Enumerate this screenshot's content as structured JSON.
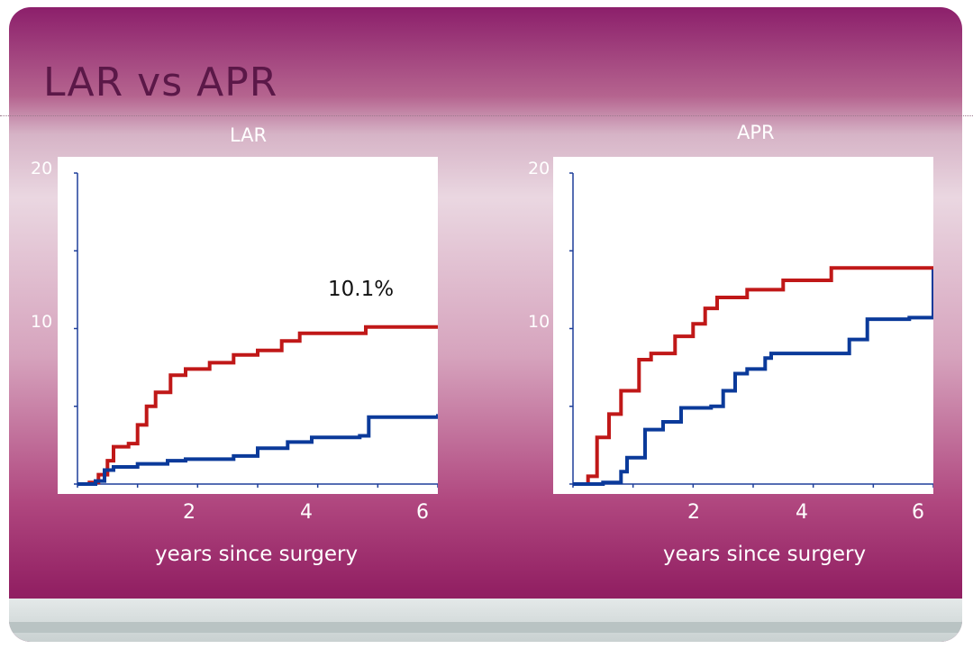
{
  "slide": {
    "title": "LAR vs APR"
  },
  "chart_data": [
    {
      "type": "line",
      "title": "LAR",
      "xlabel": "years since surgery",
      "x_ticks": [
        "2",
        "4",
        "6"
      ],
      "y_ticks": [
        "20",
        "10"
      ],
      "xlim": [
        0,
        6
      ],
      "ylim": [
        0,
        20
      ],
      "annotation": "10.1%",
      "series": [
        {
          "color": "#c01818",
          "points": [
            [
              0,
              0
            ],
            [
              0.2,
              0.1
            ],
            [
              0.35,
              0.6
            ],
            [
              0.5,
              1.5
            ],
            [
              0.6,
              2.4
            ],
            [
              0.85,
              2.6
            ],
            [
              1.0,
              3.8
            ],
            [
              1.15,
              5.0
            ],
            [
              1.3,
              5.9
            ],
            [
              1.55,
              7.0
            ],
            [
              1.8,
              7.4
            ],
            [
              2.2,
              7.8
            ],
            [
              2.6,
              8.3
            ],
            [
              3.0,
              8.6
            ],
            [
              3.4,
              9.2
            ],
            [
              3.7,
              9.7
            ],
            [
              4.3,
              9.7
            ],
            [
              4.8,
              10.1
            ],
            [
              6.0,
              10.1
            ]
          ]
        },
        {
          "color": "#0b3a9a",
          "points": [
            [
              0,
              0
            ],
            [
              0.3,
              0.2
            ],
            [
              0.45,
              0.9
            ],
            [
              0.6,
              1.1
            ],
            [
              1.0,
              1.3
            ],
            [
              1.5,
              1.5
            ],
            [
              1.8,
              1.6
            ],
            [
              2.6,
              1.8
            ],
            [
              3.0,
              2.3
            ],
            [
              3.5,
              2.7
            ],
            [
              3.9,
              3.0
            ],
            [
              4.7,
              3.1
            ],
            [
              4.85,
              4.3
            ],
            [
              6.0,
              4.5
            ]
          ]
        }
      ]
    },
    {
      "type": "line",
      "title": "APR",
      "xlabel": "years since surgery",
      "x_ticks": [
        "2",
        "4",
        "6"
      ],
      "y_ticks": [
        "20",
        "10"
      ],
      "xlim": [
        0,
        6
      ],
      "ylim": [
        0,
        20
      ],
      "series": [
        {
          "color": "#c01818",
          "points": [
            [
              0,
              0
            ],
            [
              0.25,
              0.5
            ],
            [
              0.4,
              3.0
            ],
            [
              0.6,
              4.5
            ],
            [
              0.8,
              6.0
            ],
            [
              1.1,
              8.0
            ],
            [
              1.3,
              8.4
            ],
            [
              1.7,
              9.5
            ],
            [
              2.0,
              10.3
            ],
            [
              2.2,
              11.3
            ],
            [
              2.4,
              12.0
            ],
            [
              2.9,
              12.5
            ],
            [
              3.5,
              13.1
            ],
            [
              4.3,
              13.9
            ],
            [
              6.0,
              14.0
            ]
          ]
        },
        {
          "color": "#0b3a9a",
          "points": [
            [
              0,
              0
            ],
            [
              0.5,
              0.1
            ],
            [
              0.8,
              0.8
            ],
            [
              0.9,
              1.7
            ],
            [
              1.2,
              3.5
            ],
            [
              1.5,
              4.0
            ],
            [
              1.8,
              4.9
            ],
            [
              2.3,
              5.0
            ],
            [
              2.5,
              6.0
            ],
            [
              2.7,
              7.1
            ],
            [
              2.9,
              7.4
            ],
            [
              3.2,
              8.1
            ],
            [
              3.3,
              8.4
            ],
            [
              4.4,
              8.4
            ],
            [
              4.6,
              9.3
            ],
            [
              4.9,
              10.6
            ],
            [
              5.6,
              10.7
            ],
            [
              6.0,
              13.8
            ]
          ]
        }
      ]
    }
  ]
}
